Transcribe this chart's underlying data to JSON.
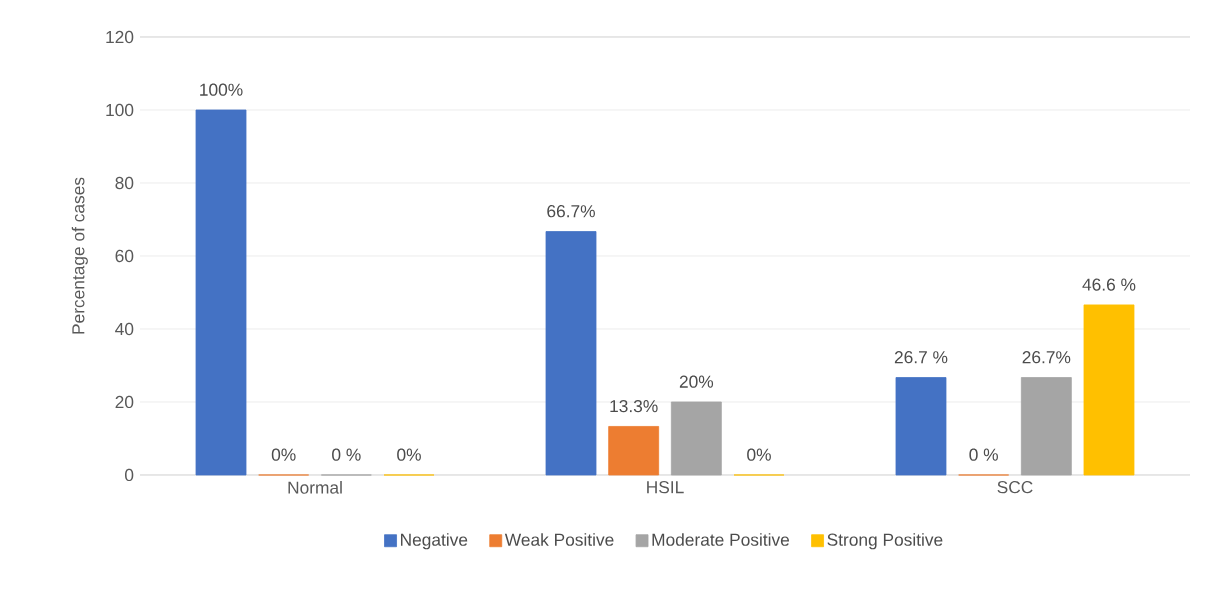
{
  "chart_data": {
    "type": "bar",
    "ylabel": "Percentage of cases",
    "categories": [
      "Normal",
      "HSIL",
      "SCC"
    ],
    "series": [
      {
        "name": "Negative",
        "color": "#4472c4",
        "values": [
          100,
          66.7,
          26.7
        ],
        "value_labels": [
          "100%",
          "66.7%",
          "26.7 %"
        ]
      },
      {
        "name": "Weak Positive",
        "color": "#ed7d31",
        "values": [
          0,
          13.3,
          0
        ],
        "value_labels": [
          "0%",
          "13.3%",
          "0 %"
        ]
      },
      {
        "name": "Moderate Positive",
        "color": "#a5a5a5",
        "values": [
          0,
          20,
          26.7
        ],
        "value_labels": [
          "0 %",
          "20%",
          "26.7%"
        ]
      },
      {
        "name": "Strong Positive",
        "color": "#ffc000",
        "values": [
          0,
          0,
          46.6
        ],
        "value_labels": [
          "0%",
          "0%",
          "46.6 %"
        ]
      }
    ],
    "ylim": [
      0,
      120
    ],
    "yticks": [
      0,
      20,
      40,
      60,
      80,
      100,
      120
    ],
    "grid": "y",
    "legend": "bottom"
  }
}
